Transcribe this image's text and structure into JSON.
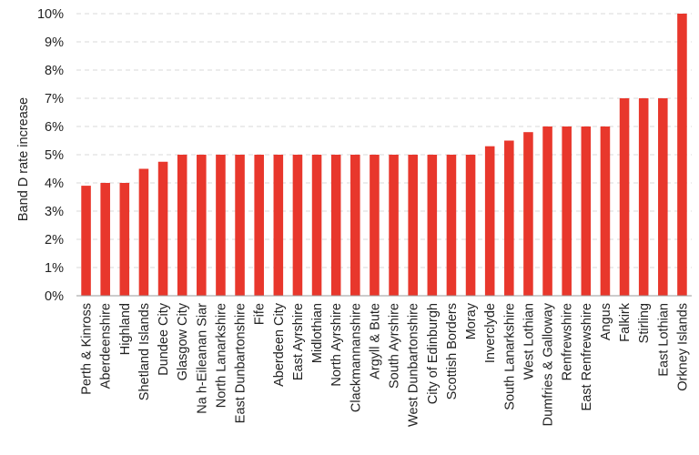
{
  "chart_data": {
    "type": "bar",
    "title": "",
    "xlabel": "",
    "ylabel": "Band D rate increase",
    "ylim": [
      0,
      10
    ],
    "ytick_step": 1,
    "ytick_suffix": "%",
    "grid": "horizontal-dashed",
    "legend": "none",
    "bar_color": "#e8372c",
    "categories": [
      "Perth & Kinross",
      "Aberdeenshire",
      "Highland",
      "Shetland  Islands",
      "Dundee City",
      "Glasgow City",
      "Na h-Eileanan Siar",
      "North Lanarkshire",
      "East Dunbartonshire",
      "Fife",
      "Aberdeen City",
      "East Ayrshire",
      "Midlothian",
      "North Ayrshire",
      "Clackmannanshire",
      "Argyll & Bute",
      "South Ayrshire",
      "West Dunbartonshire",
      "City of Edinburgh",
      "Scottish Borders",
      "Moray",
      "Inverclyde",
      "South Lanarkshire",
      "West Lothian",
      "Dumfries & Galloway",
      "Renfrewshire",
      "East Renfrewshire",
      "Angus",
      "Falkirk",
      "Stirling",
      "East Lothian",
      "Orkney Islands"
    ],
    "values": [
      3.9,
      4.0,
      4.0,
      4.5,
      4.75,
      5.0,
      5.0,
      5.0,
      5.0,
      5.0,
      5.0,
      5.0,
      5.0,
      5.0,
      5.0,
      5.0,
      5.0,
      5.0,
      5.0,
      5.0,
      5.0,
      5.3,
      5.5,
      5.8,
      6.0,
      6.0,
      6.0,
      6.0,
      7.0,
      7.0,
      7.0,
      10.0
    ]
  }
}
